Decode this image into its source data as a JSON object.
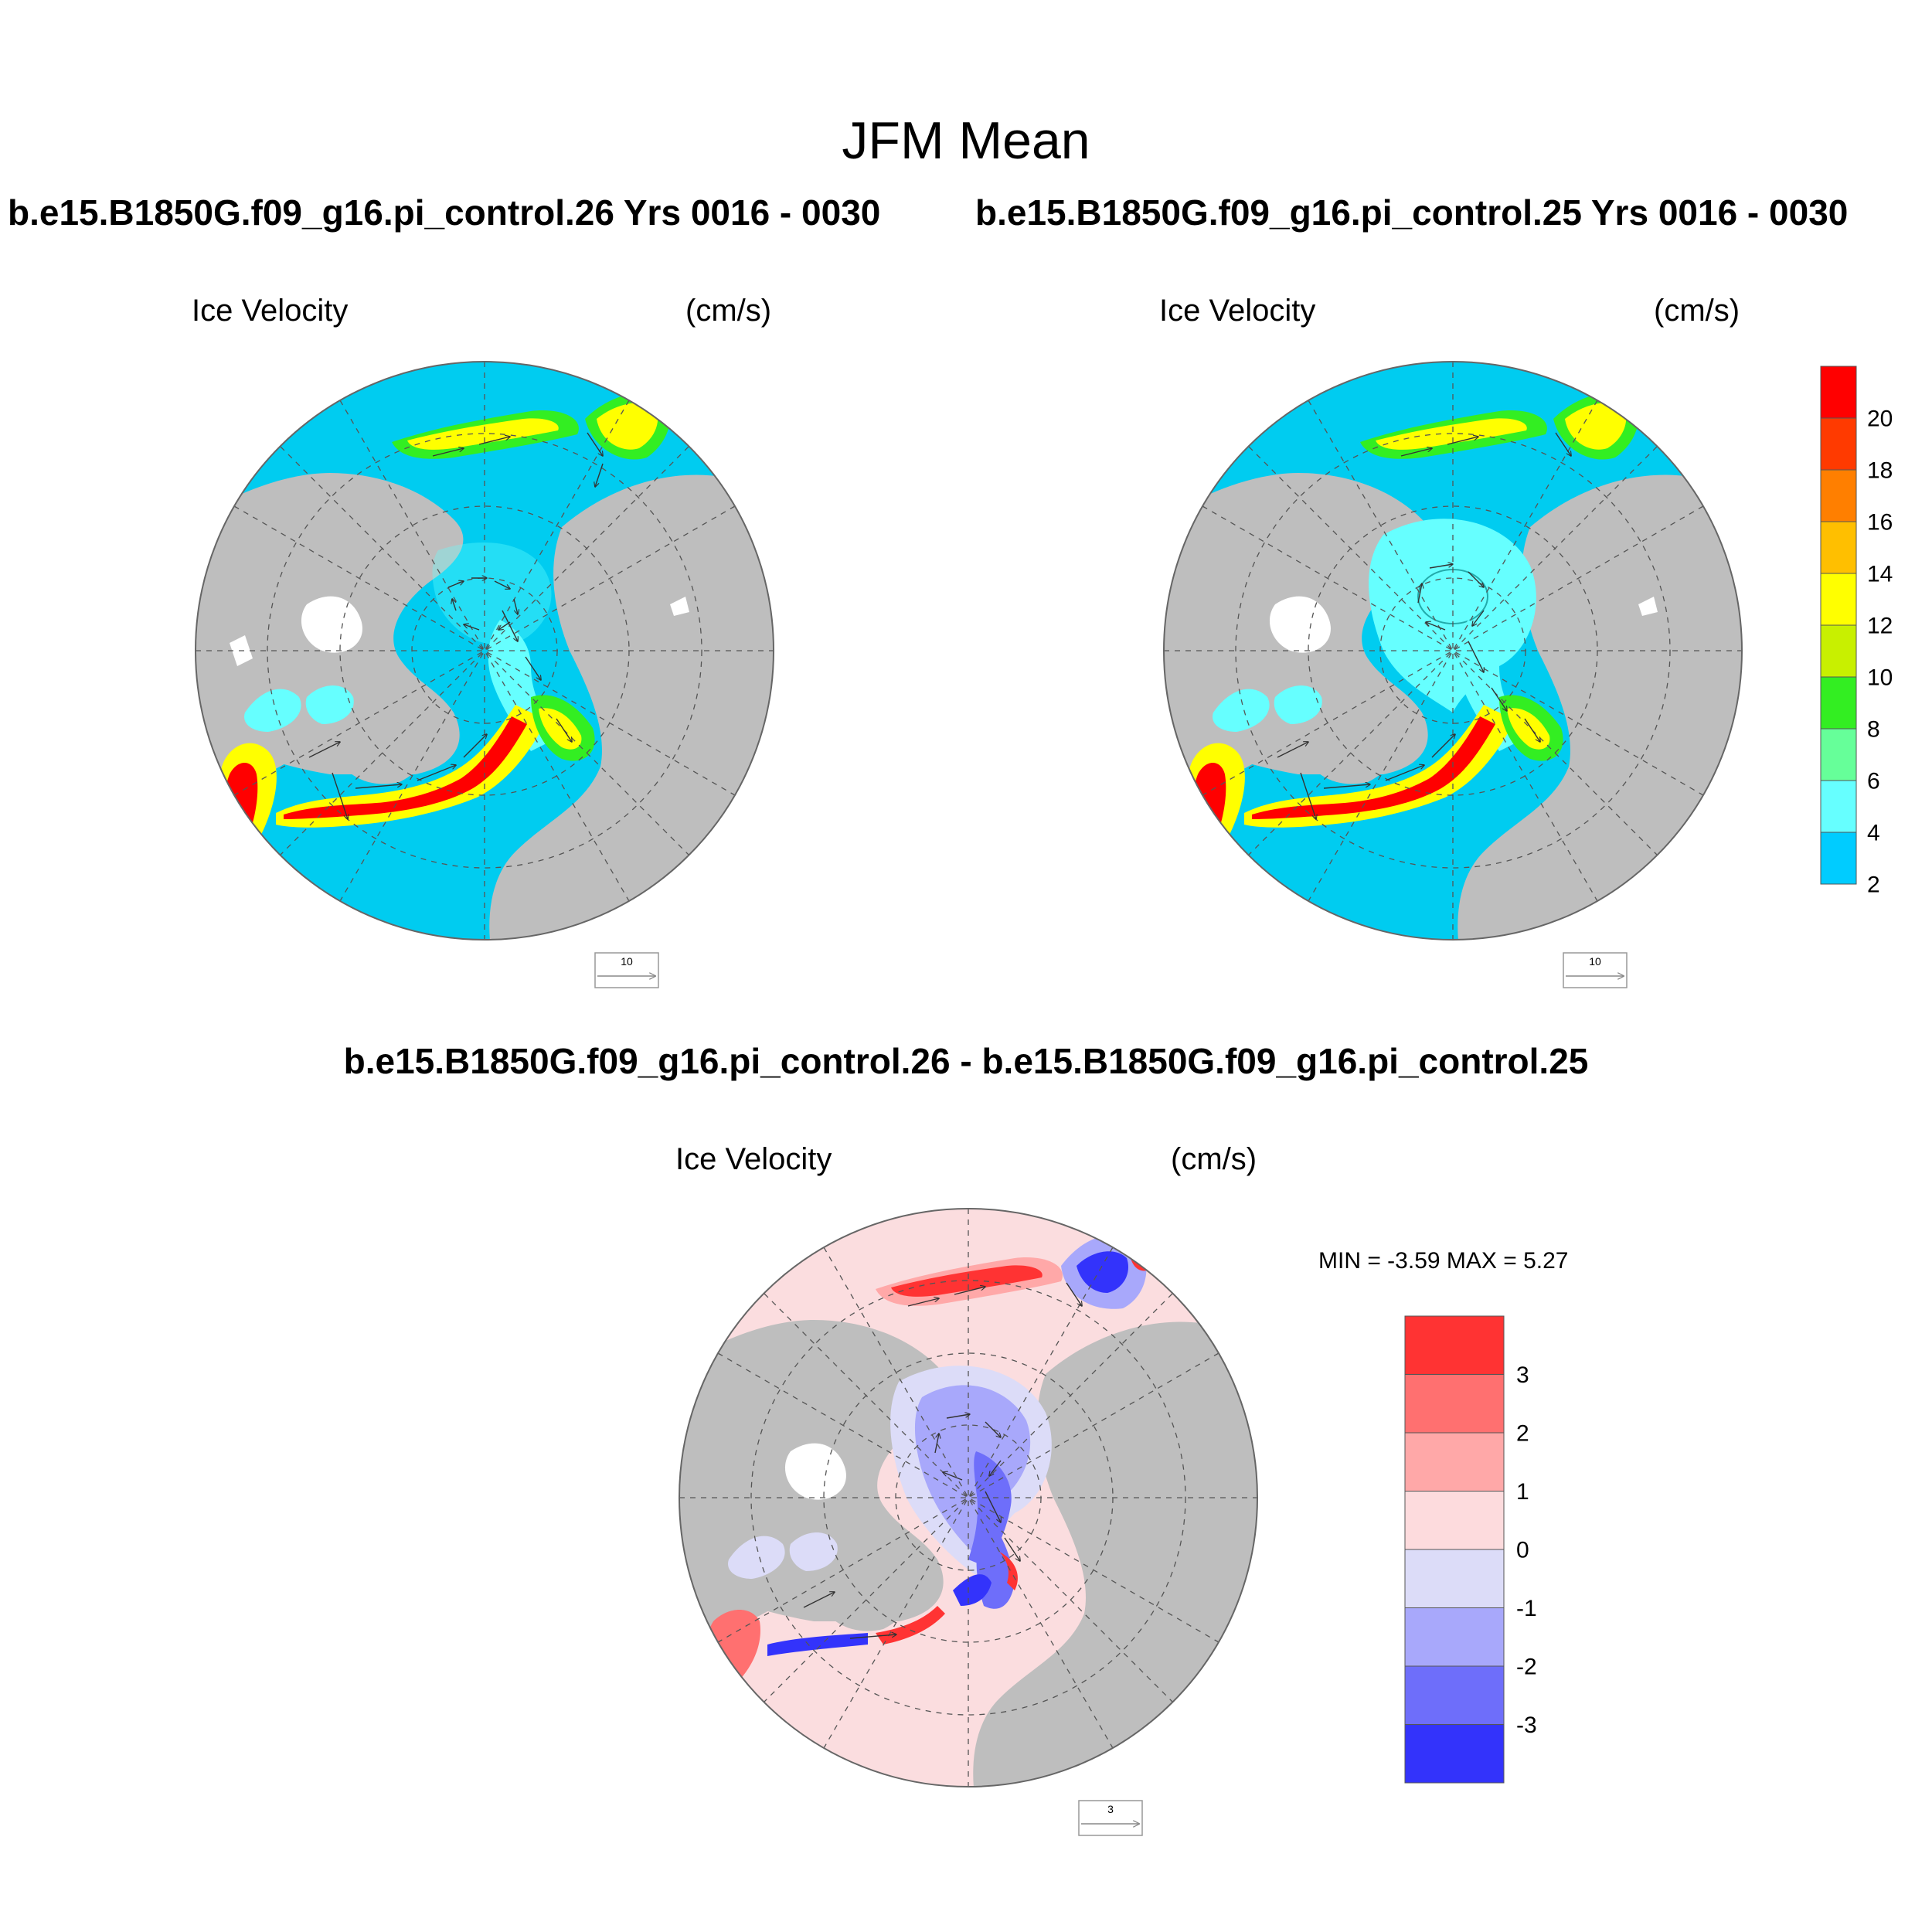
{
  "main_title": "JFM Mean",
  "panels": [
    {
      "case_title": "b.e15.B1850G.f09_g16.pi_control.26  Yrs 0016 - 0030",
      "field": "Ice Velocity",
      "units": "(cm/s)",
      "ref_vector": "10"
    },
    {
      "case_title": "b.e15.B1850G.f09_g16.pi_control.25  Yrs 0016 - 0030",
      "field": "Ice Velocity",
      "units": "(cm/s)",
      "ref_vector": "10"
    },
    {
      "case_title": "b.e15.B1850G.f09_g16.pi_control.26 - b.e15.B1850G.f09_g16.pi_control.25",
      "field": "Ice Velocity",
      "units": "(cm/s)",
      "ref_vector": "3",
      "min_max": "MIN =  -3.59 MAX =   5.27"
    }
  ],
  "colorbar_top": {
    "labels": [
      "20",
      "18",
      "16",
      "14",
      "12",
      "10",
      "8",
      "6",
      "4",
      "2"
    ],
    "colors": [
      "#ff0000",
      "#ff3a00",
      "#ff7f00",
      "#ffbf00",
      "#ffff00",
      "#c8f000",
      "#33ee22",
      "#66ff99",
      "#66ffff",
      "#00ccff"
    ]
  },
  "colorbar_diff": {
    "labels": [
      "3",
      "2",
      "1",
      "0",
      "-1",
      "-2",
      "-3"
    ],
    "colors": [
      "#ff3333",
      "#ff7070",
      "#ffa8a8",
      "#fddbdd",
      "#dcdcf8",
      "#a8a8fb",
      "#6e6efa",
      "#3333fb"
    ]
  },
  "colors": {
    "land": "#bebebe",
    "ocean_low_speed": "#00ccf0",
    "diff_background": "#fbdddf"
  }
}
